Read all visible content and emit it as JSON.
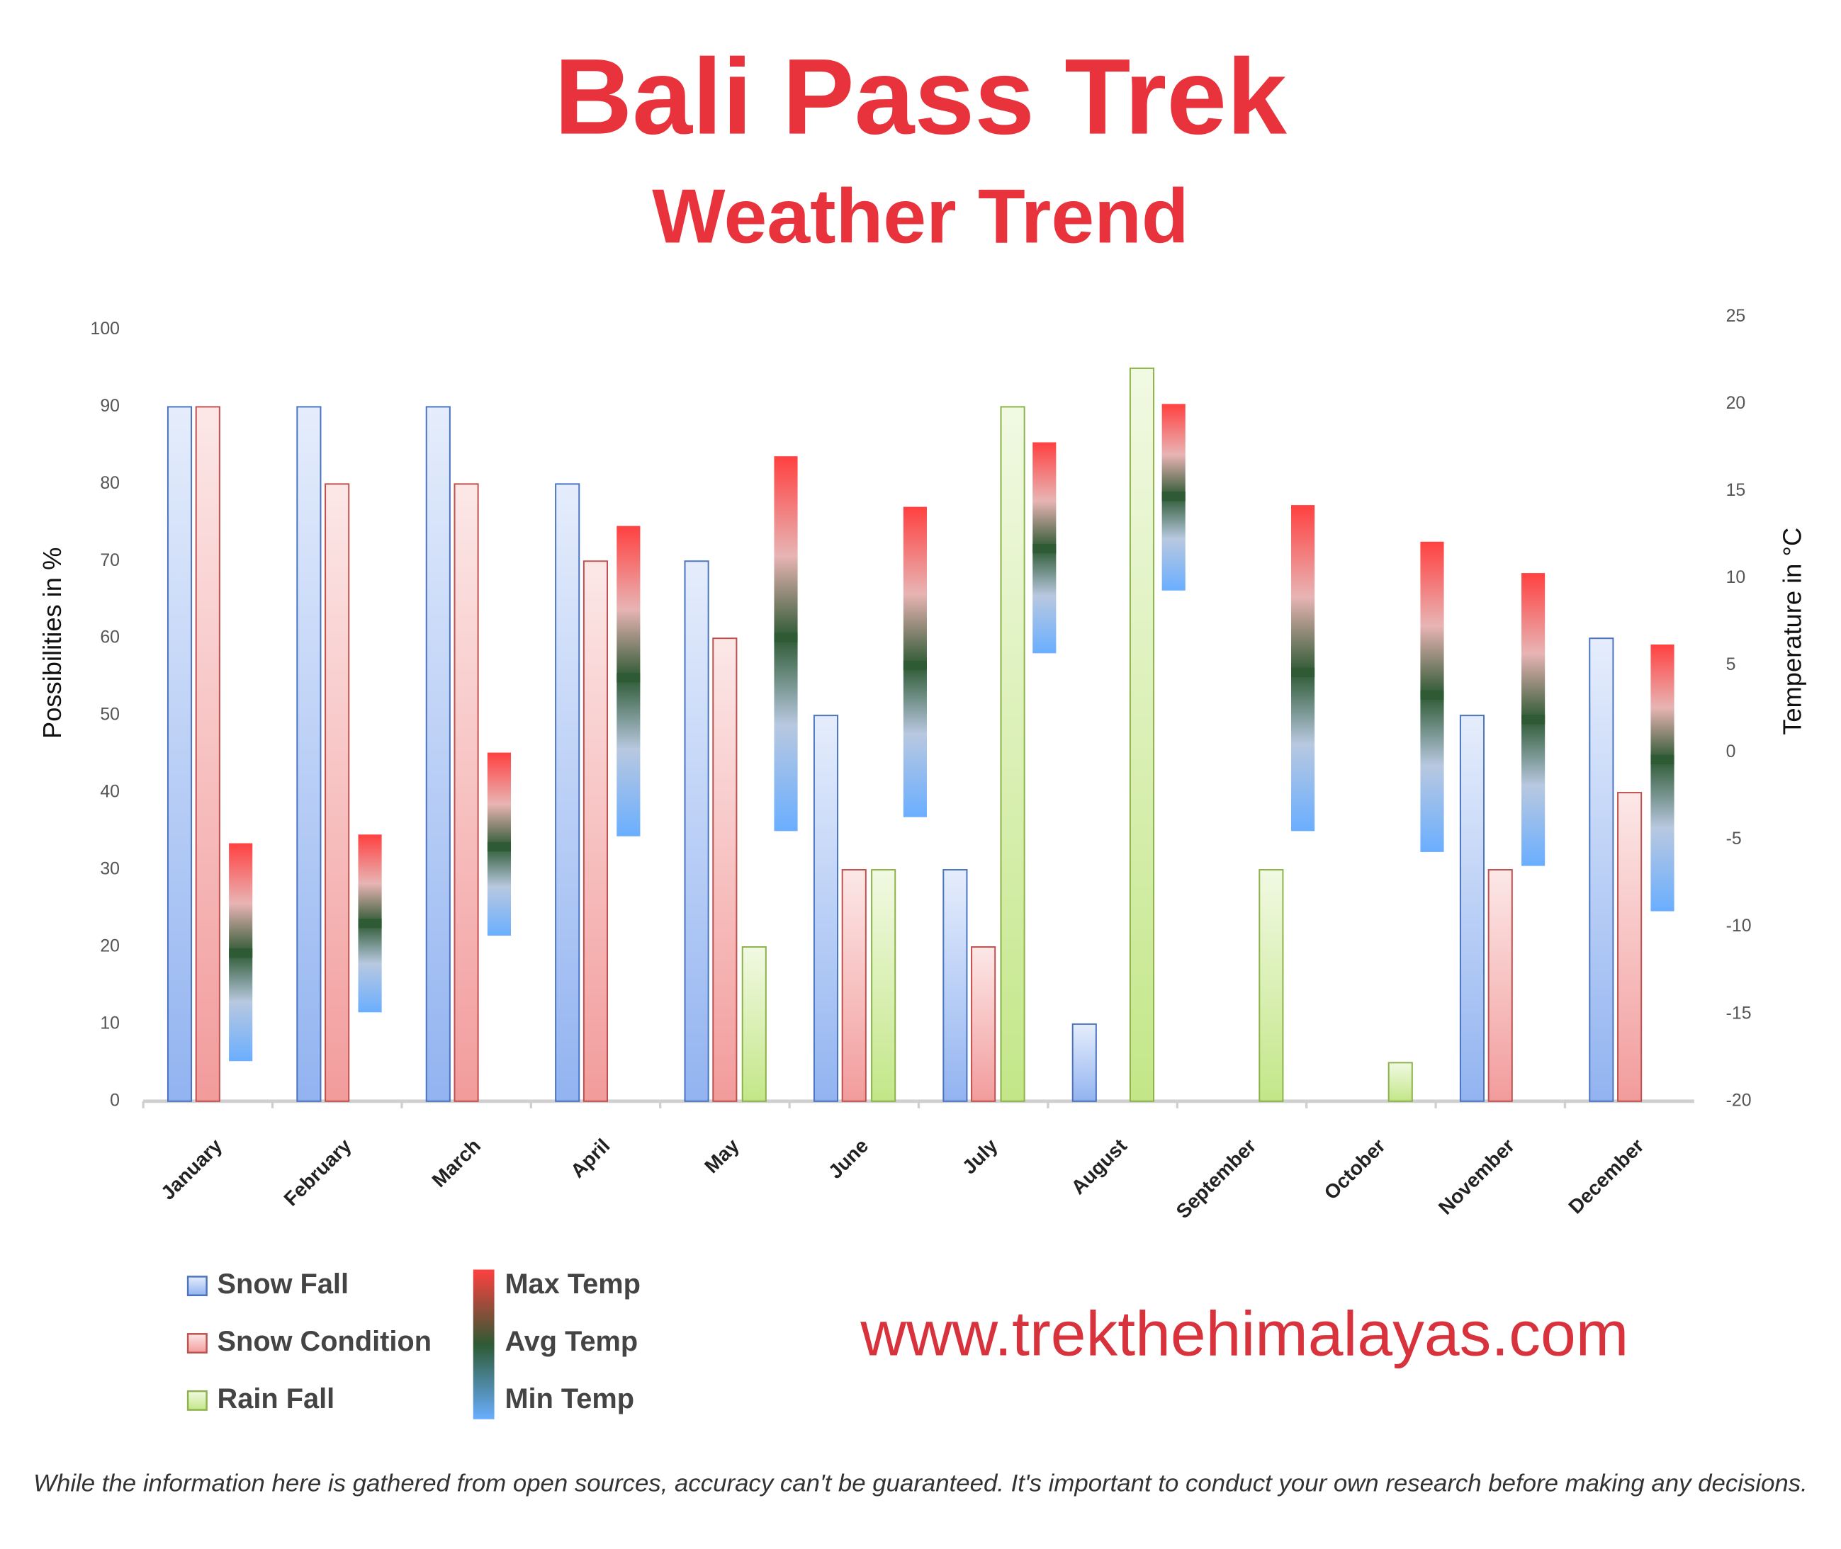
{
  "chart_data": {
    "type": "bar",
    "title": "Bali Pass Trek",
    "subtitle": "Weather Trend",
    "y_label": "Possibilities in %",
    "y2_label": "Temperature in °C",
    "categories": [
      "January",
      "February",
      "March",
      "April",
      "May",
      "June",
      "July",
      "August",
      "September",
      "October",
      "November",
      "December"
    ],
    "series": [
      {
        "name": "Snow Fall",
        "color": "#7fa6ee",
        "values": [
          90,
          90,
          90,
          80,
          70,
          50,
          30,
          10,
          0,
          0,
          50,
          60
        ]
      },
      {
        "name": "Snow Condition",
        "color": "#f08a8a",
        "values": [
          90,
          80,
          80,
          70,
          60,
          30,
          20,
          0,
          0,
          0,
          30,
          40
        ]
      },
      {
        "name": "Rain Fall",
        "color": "#b9e273",
        "values": [
          0,
          0,
          0,
          0,
          20,
          30,
          90,
          95,
          30,
          5,
          0,
          0
        ]
      },
      {
        "name": "Max Temp",
        "color": "#ff4040",
        "axis": "y2",
        "values": [
          -5.2,
          -4.7,
          0,
          13,
          17,
          14.1,
          17.8,
          20,
          14.2,
          12.1,
          10.3,
          6.2
        ]
      },
      {
        "name": "Avg Temp",
        "color": "#2e5a34",
        "axis": "y2",
        "values": [
          -11.5,
          -9.8,
          -5.4,
          4.3,
          6.6,
          5,
          11.7,
          14.7,
          4.6,
          3.3,
          1.9,
          -0.4
        ]
      },
      {
        "name": "Min Temp",
        "color": "#6aaeff",
        "axis": "y2",
        "values": [
          -17.7,
          -14.9,
          -10.5,
          -4.8,
          -4.5,
          -3.7,
          5.7,
          9.3,
          -4.5,
          -5.7,
          -6.5,
          -9.1
        ]
      }
    ],
    "ylim": [
      0,
      100
    ],
    "yticks": [
      0,
      10,
      20,
      30,
      40,
      50,
      60,
      70,
      80,
      90,
      100
    ],
    "y2lim": [
      -20,
      25
    ],
    "y2ticks": [
      -20,
      -15,
      -10,
      -5,
      0,
      5,
      10,
      15,
      20,
      25
    ],
    "website": "www.trekthehimalayas.com",
    "disclaimer": "While the information here is gathered from open sources, accuracy can't be guaranteed. It's important to conduct your own research before making any decisions."
  }
}
